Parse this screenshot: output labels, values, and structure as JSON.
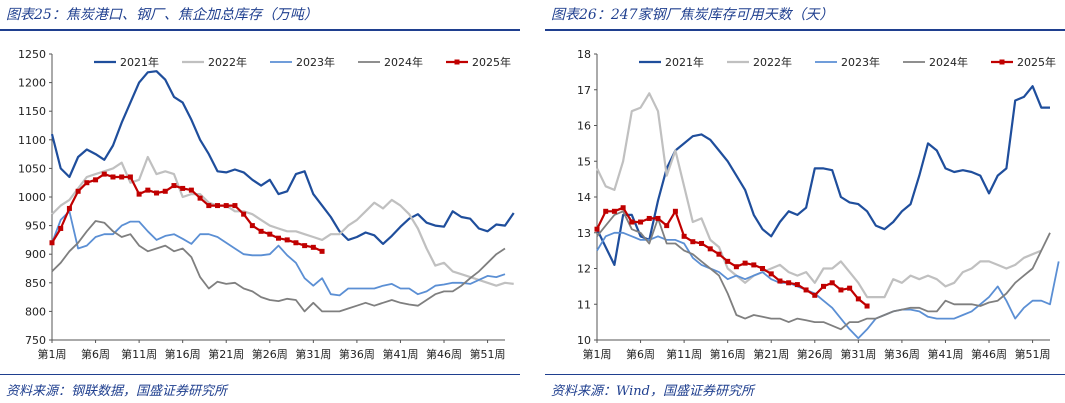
{
  "charts": [
    {
      "title": "图表25：焦炭港口、钢厂、焦企加总库存（万吨）",
      "source": "资料来源：钢联数据，国盛证券研究所"
    },
    {
      "title": "图表26：247家钢厂焦炭库存可用天数（天）",
      "source": "资料来源：Wind，国盛证券研究所"
    }
  ],
  "chart_data": [
    {
      "type": "line",
      "title": "焦炭港口、钢厂、焦企加总库存（万吨）",
      "xlabel": "",
      "ylabel": "",
      "ylim": [
        750,
        1250
      ],
      "yticks": [
        750,
        800,
        850,
        900,
        950,
        1000,
        1050,
        1100,
        1150,
        1200,
        1250
      ],
      "xticks": [
        1,
        6,
        11,
        16,
        21,
        26,
        31,
        36,
        41,
        46,
        51
      ],
      "xtick_labels": [
        "第1周",
        "第6周",
        "第11周",
        "第16周",
        "第21周",
        "第26周",
        "第31周",
        "第36周",
        "第41周",
        "第46周",
        "第51周"
      ],
      "xlim": [
        1,
        53
      ],
      "grid": false,
      "legend_position": "top",
      "series": [
        {
          "name": "2021年",
          "color": "#1f4e9c",
          "width": 2.2,
          "marker": false,
          "values": [
            1110,
            1050,
            1035,
            1070,
            1083,
            1075,
            1065,
            1090,
            1130,
            1165,
            1200,
            1218,
            1220,
            1205,
            1175,
            1165,
            1135,
            1100,
            1075,
            1045,
            1043,
            1048,
            1043,
            1030,
            1020,
            1030,
            1005,
            1010,
            1040,
            1045,
            1005,
            985,
            965,
            940,
            925,
            930,
            938,
            933,
            918,
            932,
            948,
            962,
            970,
            955,
            950,
            948,
            975,
            965,
            962,
            945,
            940,
            952,
            950,
            972
          ]
        },
        {
          "name": "2022年",
          "color": "#c0c0c0",
          "width": 2.2,
          "marker": false,
          "values": [
            970,
            985,
            995,
            1015,
            1035,
            1040,
            1045,
            1050,
            1060,
            1025,
            1030,
            1070,
            1040,
            1045,
            1040,
            1000,
            1005,
            1005,
            990,
            985,
            985,
            975,
            975,
            970,
            960,
            950,
            945,
            940,
            940,
            935,
            930,
            925,
            935,
            935,
            950,
            960,
            975,
            990,
            980,
            995,
            985,
            970,
            945,
            910,
            880,
            885,
            870,
            865,
            860,
            855,
            850,
            845,
            850,
            848
          ]
        },
        {
          "name": "2023年",
          "color": "#5b8fd4",
          "width": 1.8,
          "marker": false,
          "values": [
            920,
            960,
            975,
            910,
            915,
            930,
            935,
            935,
            950,
            957,
            957,
            940,
            925,
            932,
            935,
            927,
            918,
            935,
            935,
            930,
            920,
            910,
            900,
            898,
            898,
            900,
            915,
            898,
            885,
            858,
            845,
            858,
            830,
            828,
            840,
            840,
            840,
            840,
            845,
            848,
            840,
            840,
            830,
            835,
            845,
            847,
            850,
            850,
            848,
            855,
            862,
            860,
            865
          ]
        },
        {
          "name": "2024年",
          "color": "#7f7f7f",
          "width": 1.8,
          "marker": false,
          "values": [
            870,
            885,
            905,
            920,
            940,
            958,
            955,
            940,
            930,
            935,
            915,
            905,
            910,
            915,
            905,
            910,
            895,
            860,
            840,
            852,
            848,
            850,
            840,
            835,
            825,
            820,
            818,
            822,
            820,
            800,
            815,
            800,
            800,
            800,
            805,
            810,
            815,
            810,
            815,
            820,
            815,
            812,
            810,
            820,
            830,
            835,
            835,
            845,
            858,
            870,
            885,
            900,
            910
          ]
        },
        {
          "name": "2025年",
          "color": "#c00000",
          "width": 2.2,
          "marker": true,
          "values": [
            920,
            945,
            980,
            1010,
            1025,
            1030,
            1040,
            1035,
            1035,
            1035,
            1005,
            1012,
            1007,
            1010,
            1020,
            1015,
            1012,
            998,
            985,
            985,
            985,
            985,
            970,
            950,
            940,
            935,
            928,
            925,
            920,
            915,
            912,
            905
          ]
        }
      ]
    },
    {
      "type": "line",
      "title": "247家钢厂焦炭库存可用天数（天）",
      "xlabel": "",
      "ylabel": "",
      "ylim": [
        10,
        18
      ],
      "yticks": [
        10,
        11,
        12,
        13,
        14,
        15,
        16,
        17,
        18
      ],
      "xticks": [
        1,
        6,
        11,
        16,
        21,
        26,
        31,
        36,
        41,
        46,
        51
      ],
      "xtick_labels": [
        "第1周",
        "第6周",
        "第11周",
        "第16周",
        "第21周",
        "第26周",
        "第31周",
        "第36周",
        "第41周",
        "第46周",
        "第51周"
      ],
      "xlim": [
        1,
        53
      ],
      "grid": false,
      "legend_position": "top",
      "series": [
        {
          "name": "2021年",
          "color": "#1f4e9c",
          "width": 2.2,
          "marker": false,
          "values": [
            13.1,
            12.6,
            12.1,
            13.5,
            13.5,
            12.9,
            12.8,
            13.9,
            14.8,
            15.3,
            15.5,
            15.7,
            15.75,
            15.6,
            15.3,
            15.0,
            14.6,
            14.2,
            13.5,
            13.1,
            12.9,
            13.3,
            13.6,
            13.5,
            13.7,
            14.8,
            14.8,
            14.75,
            14.0,
            13.85,
            13.8,
            13.6,
            13.2,
            13.1,
            13.3,
            13.6,
            13.8,
            14.6,
            15.5,
            15.3,
            14.8,
            14.7,
            14.75,
            14.7,
            14.6,
            14.1,
            14.6,
            14.8,
            16.7,
            16.8,
            17.1,
            16.5,
            16.5
          ]
        },
        {
          "name": "2022年",
          "color": "#c0c0c0",
          "width": 2.2,
          "marker": false,
          "values": [
            14.8,
            14.3,
            14.2,
            15.0,
            16.4,
            16.5,
            16.9,
            16.4,
            14.6,
            15.3,
            14.3,
            13.3,
            13.4,
            12.8,
            12.6,
            12.0,
            11.8,
            11.6,
            11.8,
            11.9,
            12.0,
            12.1,
            11.9,
            11.8,
            11.9,
            11.6,
            12.0,
            12.0,
            12.2,
            11.9,
            11.6,
            11.2,
            11.2,
            11.2,
            11.7,
            11.6,
            11.8,
            11.7,
            11.8,
            11.7,
            11.5,
            11.6,
            11.9,
            12.0,
            12.2,
            12.2,
            12.1,
            12.0,
            12.1,
            12.3,
            12.4,
            12.5
          ]
        },
        {
          "name": "2023年",
          "color": "#5b8fd4",
          "width": 1.8,
          "marker": false,
          "values": [
            12.5,
            12.9,
            13.0,
            13.0,
            12.9,
            12.8,
            12.8,
            12.9,
            12.8,
            12.8,
            12.7,
            12.3,
            12.1,
            12.0,
            11.9,
            11.7,
            11.8,
            11.7,
            11.8,
            11.9,
            11.7,
            11.6,
            11.6,
            11.5,
            11.4,
            11.3,
            11.1,
            10.9,
            10.6,
            10.3,
            10.05,
            10.3,
            10.6,
            10.7,
            10.8,
            10.85,
            10.85,
            10.8,
            10.65,
            10.6,
            10.6,
            10.6,
            10.7,
            10.8,
            11.0,
            11.2,
            11.5,
            11.1,
            10.6,
            10.9,
            11.1,
            11.1,
            11.0,
            12.2
          ]
        },
        {
          "name": "2024年",
          "color": "#7f7f7f",
          "width": 1.8,
          "marker": false,
          "values": [
            12.9,
            13.2,
            13.5,
            13.6,
            13.1,
            13.0,
            12.7,
            13.4,
            12.7,
            12.7,
            12.5,
            12.4,
            12.2,
            12.0,
            11.8,
            11.3,
            10.7,
            10.6,
            10.7,
            10.65,
            10.6,
            10.6,
            10.5,
            10.6,
            10.55,
            10.5,
            10.5,
            10.4,
            10.3,
            10.5,
            10.5,
            10.6,
            10.6,
            10.7,
            10.8,
            10.85,
            10.9,
            10.9,
            10.8,
            10.8,
            11.1,
            11.0,
            11.0,
            11.0,
            10.95,
            11.05,
            11.1,
            11.3,
            11.6,
            11.8,
            12.0,
            12.5,
            13.0
          ]
        },
        {
          "name": "2025年",
          "color": "#c00000",
          "width": 2.2,
          "marker": true,
          "values": [
            13.1,
            13.6,
            13.6,
            13.7,
            13.3,
            13.3,
            13.4,
            13.4,
            13.2,
            13.6,
            12.9,
            12.75,
            12.7,
            12.55,
            12.4,
            12.2,
            12.05,
            12.15,
            12.1,
            12.0,
            11.85,
            11.65,
            11.6,
            11.55,
            11.4,
            11.25,
            11.5,
            11.6,
            11.4,
            11.45,
            11.15,
            10.95
          ]
        }
      ]
    }
  ]
}
